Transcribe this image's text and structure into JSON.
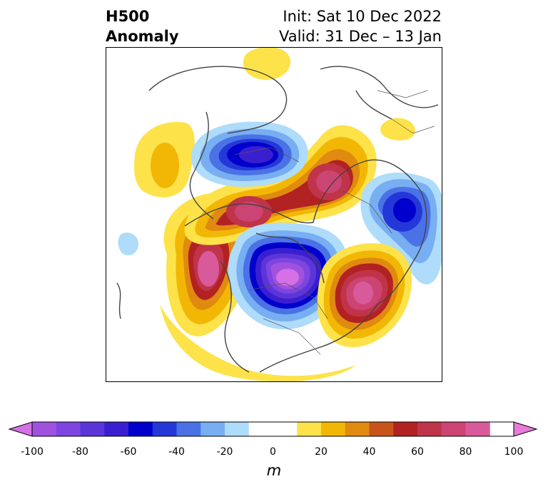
{
  "header": {
    "title_line1": "H500",
    "title_line2": "Anomaly",
    "init_text": "Init: Sat 10 Dec 2022",
    "valid_text": "Valid: 31 Dec – 13 Jan"
  },
  "colorbar": {
    "unit": "m",
    "tick_labels": [
      "-100",
      "-80",
      "-60",
      "-40",
      "-20",
      "0",
      "20",
      "40",
      "60",
      "80",
      "100"
    ],
    "levels": [
      -100,
      -90,
      -80,
      -70,
      -60,
      -50,
      -40,
      -30,
      -20,
      -10,
      10,
      20,
      30,
      40,
      50,
      60,
      70,
      80,
      90,
      100
    ],
    "min_extend_color": "#d670e6",
    "max_extend_color": "#e87ad8",
    "bins": [
      {
        "from": -100,
        "to": -90,
        "color": "#a052df"
      },
      {
        "from": -90,
        "to": -80,
        "color": "#7e45e0"
      },
      {
        "from": -80,
        "to": -70,
        "color": "#5c35d9"
      },
      {
        "from": -70,
        "to": -60,
        "color": "#3a1fd0"
      },
      {
        "from": -60,
        "to": -50,
        "color": "#0000cc"
      },
      {
        "from": -50,
        "to": -40,
        "color": "#2438d8"
      },
      {
        "from": -40,
        "to": -30,
        "color": "#4a72e6"
      },
      {
        "from": -30,
        "to": -20,
        "color": "#78aef2"
      },
      {
        "from": -20,
        "to": -10,
        "color": "#aedcfa"
      },
      {
        "from": -10,
        "to": 10,
        "color": "#ffffff"
      },
      {
        "from": 10,
        "to": 20,
        "color": "#fde24a"
      },
      {
        "from": 20,
        "to": 30,
        "color": "#f2b705"
      },
      {
        "from": 30,
        "to": 40,
        "color": "#e08a10"
      },
      {
        "from": 40,
        "to": 50,
        "color": "#c8541a"
      },
      {
        "from": 50,
        "to": 60,
        "color": "#b22222"
      },
      {
        "from": 60,
        "to": 70,
        "color": "#c0344a"
      },
      {
        "from": 70,
        "to": 80,
        "color": "#cc4474"
      },
      {
        "from": 80,
        "to": 90,
        "color": "#d85a9a"
      }
    ]
  },
  "map": {
    "projection": "north-polar-stereographic",
    "features": [
      {
        "kind": "negative",
        "value": -60,
        "region": "Baffin Bay / northern Canada"
      },
      {
        "kind": "positive",
        "value": 70,
        "region": "Arctic Ocean / Siberia"
      },
      {
        "kind": "negative",
        "value": -60,
        "region": "Scandinavia / northern Europe"
      },
      {
        "kind": "positive",
        "value": 70,
        "region": "Alaska / Bering Sea"
      },
      {
        "kind": "positive",
        "value": 90,
        "region": "North Pacific"
      },
      {
        "kind": "negative",
        "value": -100,
        "region": "Eastern Siberia / Kamchatka"
      },
      {
        "kind": "positive",
        "value": 90,
        "region": "Northeast Asia"
      },
      {
        "kind": "positive",
        "value": 20,
        "region": "North Atlantic (yellow)"
      },
      {
        "kind": "positive",
        "value": 20,
        "region": "Central Asia (yellow)"
      }
    ]
  }
}
